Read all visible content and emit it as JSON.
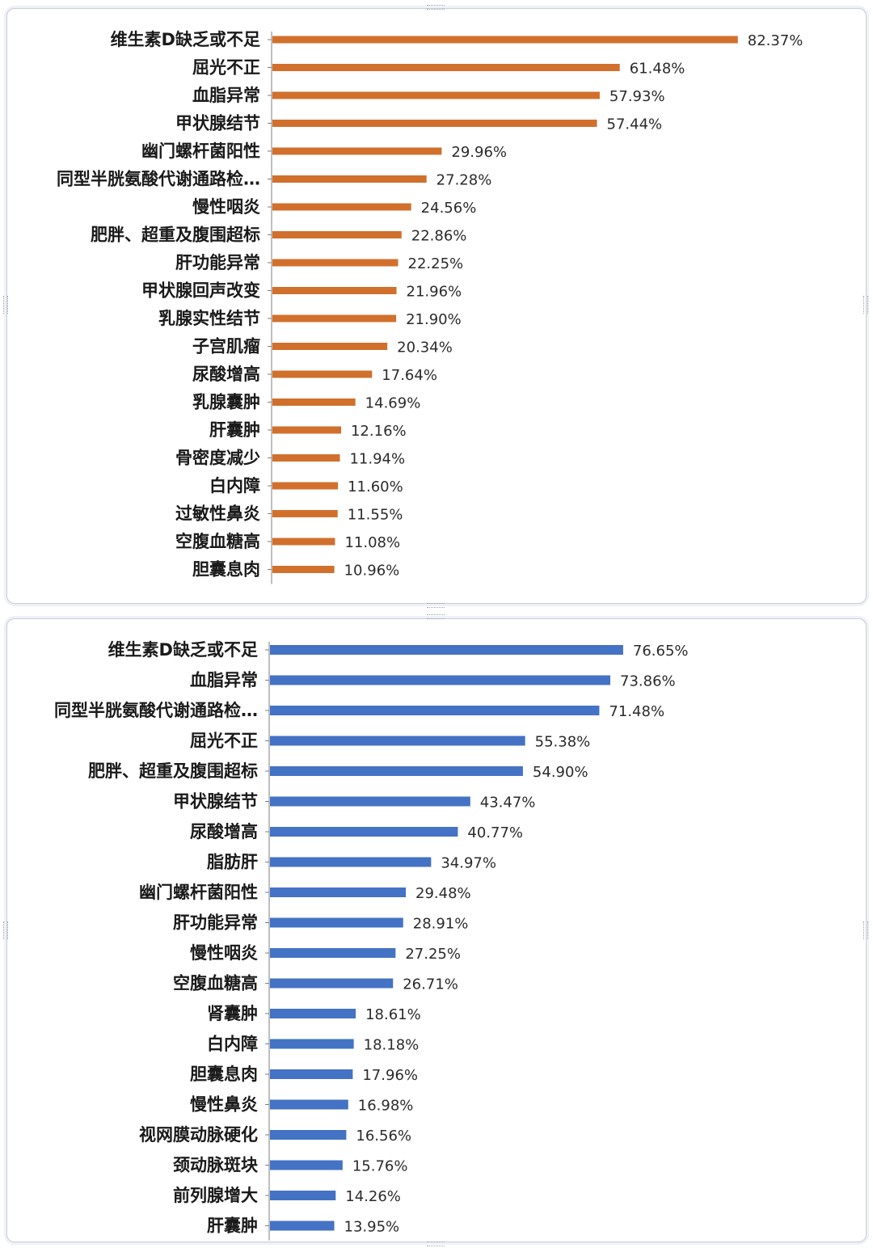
{
  "chart_data": [
    {
      "type": "bar",
      "orientation": "horizontal",
      "color": "#d1702c",
      "categories": [
        "维生素D缺乏或不足",
        "屈光不正",
        "血脂异常",
        "甲状腺结节",
        "幽门螺杆菌阳性",
        "同型半胱氨酸代谢通路检…",
        "慢性咽炎",
        "肥胖、超重及腹围超标",
        "肝功能异常",
        "甲状腺回声改变",
        "乳腺实性结节",
        "子宫肌瘤",
        "尿酸增高",
        "乳腺囊肿",
        "肝囊肿",
        "骨密度减少",
        "白内障",
        "过敏性鼻炎",
        "空腹血糖高",
        "胆囊息肉"
      ],
      "values": [
        82.37,
        61.48,
        57.93,
        57.44,
        29.96,
        27.28,
        24.56,
        22.86,
        22.25,
        21.96,
        21.9,
        20.34,
        17.64,
        14.69,
        12.16,
        11.94,
        11.6,
        11.55,
        11.08,
        10.96
      ],
      "value_labels": [
        "82.37%",
        "61.48%",
        "57.93%",
        "57.44%",
        "29.96%",
        "27.28%",
        "24.56%",
        "22.86%",
        "22.25%",
        "21.96%",
        "21.90%",
        "20.34%",
        "17.64%",
        "14.69%",
        "12.16%",
        "11.94%",
        "11.60%",
        "11.55%",
        "11.08%",
        "10.96%"
      ],
      "xlim": [
        0,
        90
      ],
      "grid": false,
      "legend": "none"
    },
    {
      "type": "bar",
      "orientation": "horizontal",
      "color": "#4472c4",
      "categories": [
        "维生素D缺乏或不足",
        "血脂异常",
        "同型半胱氨酸代谢通路检…",
        "屈光不正",
        "肥胖、超重及腹围超标",
        "甲状腺结节",
        "尿酸增高",
        "脂肪肝",
        "幽门螺杆菌阳性",
        "肝功能异常",
        "慢性咽炎",
        "空腹血糖高",
        "肾囊肿",
        "白内障",
        "胆囊息肉",
        "慢性鼻炎",
        "视网膜动脉硬化",
        "颈动脉斑块",
        "前列腺增大",
        "肝囊肿"
      ],
      "values": [
        76.65,
        73.86,
        71.48,
        55.38,
        54.9,
        43.47,
        40.77,
        34.97,
        29.48,
        28.91,
        27.25,
        26.71,
        18.61,
        18.18,
        17.96,
        16.98,
        16.56,
        15.76,
        14.26,
        13.95
      ],
      "value_labels": [
        "76.65%",
        "73.86%",
        "71.48%",
        "55.38%",
        "54.90%",
        "43.47%",
        "40.77%",
        "34.97%",
        "29.48%",
        "28.91%",
        "27.25%",
        "26.71%",
        "18.61%",
        "18.18%",
        "17.96%",
        "16.98%",
        "16.56%",
        "15.76%",
        "14.26%",
        "13.95%"
      ],
      "xlim": [
        0,
        90
      ],
      "grid": false,
      "legend": "none"
    }
  ]
}
